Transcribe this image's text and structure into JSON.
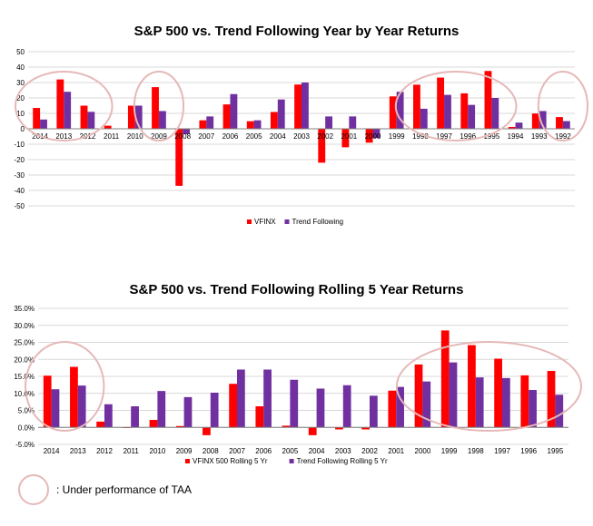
{
  "colors": {
    "vfinx": "#ff0000",
    "trend": "#7030a0",
    "circle": "#e6b8b8",
    "grid": "#d9d9d9",
    "axis": "#808080"
  },
  "note": {
    "text": ":  Under performance of TAA"
  },
  "chart_data": [
    {
      "type": "bar",
      "title": "S&P 500 vs. Trend Following Year by Year Returns",
      "categories": [
        "2014",
        "2013",
        "2012",
        "2011",
        "2010",
        "2009",
        "2008",
        "2007",
        "2006",
        "2005",
        "2004",
        "2003",
        "2002",
        "2001",
        "2000",
        "1999",
        "1998",
        "1997",
        "1996",
        "1995",
        "1994",
        "1993",
        "1992"
      ],
      "series": [
        {
          "name": "VFINX",
          "values": [
            13.5,
            32,
            15,
            2,
            15,
            27,
            -37,
            5.5,
            15.8,
            4.9,
            10.9,
            28.7,
            -22,
            -12,
            -9,
            21,
            28.6,
            33.2,
            23,
            37.5,
            1.2,
            9.9,
            7.6
          ]
        },
        {
          "name": "Trend Following",
          "values": [
            6,
            24,
            11,
            0,
            15,
            11.5,
            -3.5,
            8,
            22.5,
            5.5,
            19,
            30,
            8,
            8,
            -6,
            24,
            13,
            22,
            15.5,
            20,
            4,
            11.5,
            5
          ]
        }
      ],
      "ylim": [
        -50,
        50
      ],
      "yticks": [
        -50,
        -40,
        -30,
        -20,
        -10,
        0,
        10,
        20,
        30,
        40,
        50
      ],
      "grid": true,
      "legend": "bottom-center",
      "highlight_circles": [
        {
          "from": "2014",
          "to": "2012"
        },
        {
          "from": "2009",
          "to": "2009"
        },
        {
          "from": "1998",
          "to": "1995"
        },
        {
          "from": "1992",
          "to": "1992"
        }
      ]
    },
    {
      "type": "bar",
      "title": "S&P 500 vs. Trend Following Rolling 5 Year Returns",
      "categories": [
        "2014",
        "2013",
        "2012",
        "2011",
        "2010",
        "2009",
        "2008",
        "2007",
        "2006",
        "2005",
        "2004",
        "2003",
        "2002",
        "2001",
        "2000",
        "1999",
        "1998",
        "1997",
        "1996",
        "1995"
      ],
      "series": [
        {
          "name": "VFINX 500 Rolling 5 Yr",
          "values": [
            15.2,
            17.8,
            1.7,
            -0.2,
            2.2,
            0.4,
            -2.3,
            12.8,
            6.2,
            0.5,
            -2.3,
            -0.6,
            -0.6,
            10.8,
            18.5,
            28.5,
            24.2,
            20.2,
            15.3,
            16.6
          ]
        },
        {
          "name": "Trend Following Rolling 5 Yr",
          "values": [
            11.2,
            12.3,
            6.8,
            6.2,
            10.7,
            8.9,
            10.2,
            17.0,
            17.0,
            14.0,
            11.4,
            12.4,
            9.3,
            11.9,
            13.5,
            19.1,
            14.7,
            14.5,
            11.0,
            9.6
          ]
        }
      ],
      "ylim": [
        -5,
        35
      ],
      "yticks": [
        "-5.0%",
        "0.0%",
        "5.0%",
        "10.0%",
        "15.0%",
        "20.0%",
        "25.0%",
        "30.0%",
        "35.0%"
      ],
      "grid": true,
      "legend": "bottom-center",
      "highlight_circles": [
        {
          "from": "2014",
          "to": "2013"
        },
        {
          "from": "2000",
          "to": "1995"
        }
      ]
    }
  ]
}
